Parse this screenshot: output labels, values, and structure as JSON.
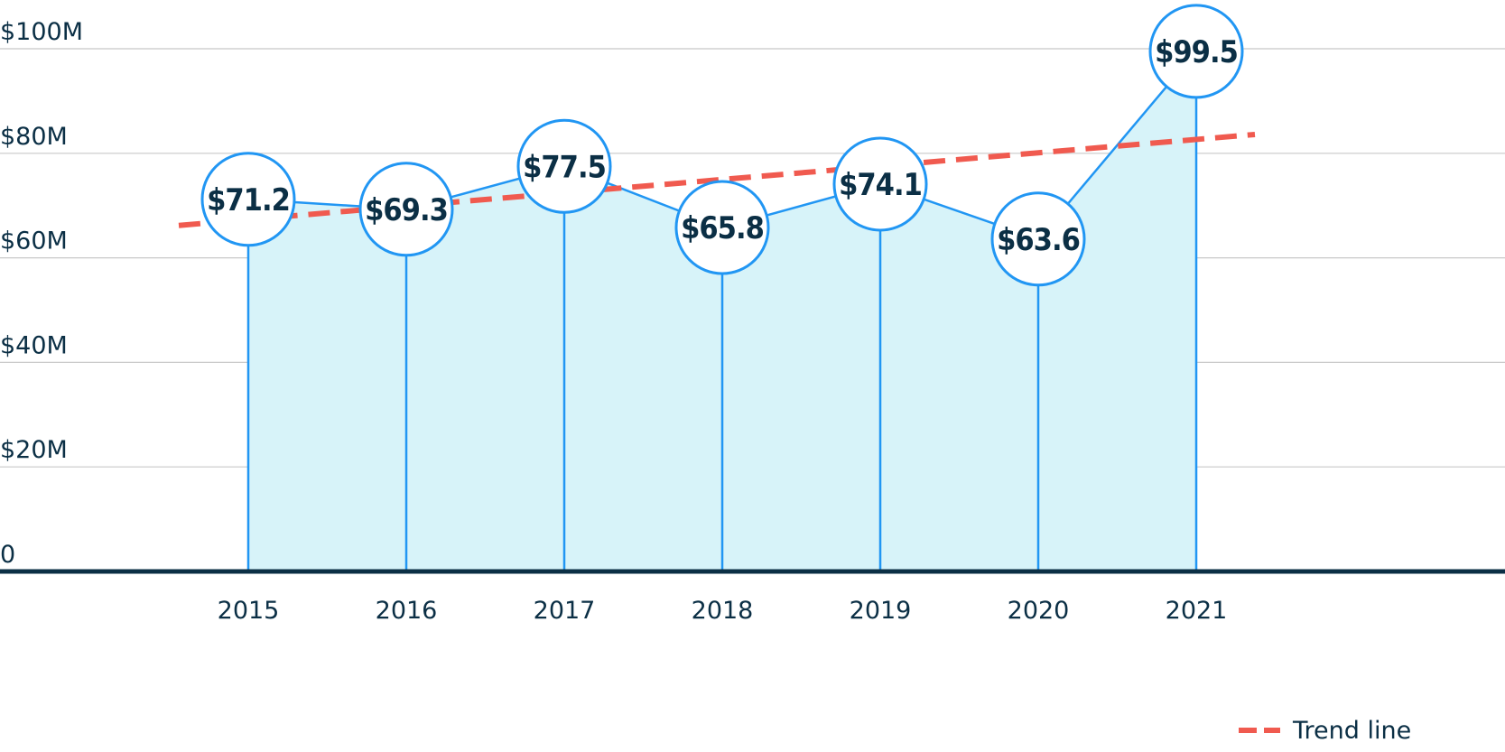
{
  "chart_data": {
    "type": "area",
    "categories": [
      "2015",
      "2016",
      "2017",
      "2018",
      "2019",
      "2020",
      "2021"
    ],
    "values": [
      71.2,
      69.3,
      77.5,
      65.8,
      74.1,
      63.6,
      99.5
    ],
    "data_labels": [
      "$71.2",
      "$69.3",
      "$77.5",
      "$65.8",
      "$74.1",
      "$63.6",
      "$99.5"
    ],
    "yticks": [
      0,
      20,
      40,
      60,
      80,
      100
    ],
    "ytick_labels": [
      "0",
      "$20M",
      "$40M",
      "$60M",
      "$80M",
      "$100M"
    ],
    "ylim": [
      0,
      100
    ],
    "grid": true,
    "trend_line": {
      "name": "Trend line",
      "start": 66.2,
      "end": 83.6
    },
    "legend": {
      "position": "bottom-right",
      "label": "Trend line"
    },
    "colors": {
      "area_fill": "#d7f3f9",
      "line": "#2196f3",
      "trend": "#f05a4f",
      "axis": "#0b2f45",
      "grid": "#c8c8c8",
      "text": "#0b2f45"
    }
  }
}
